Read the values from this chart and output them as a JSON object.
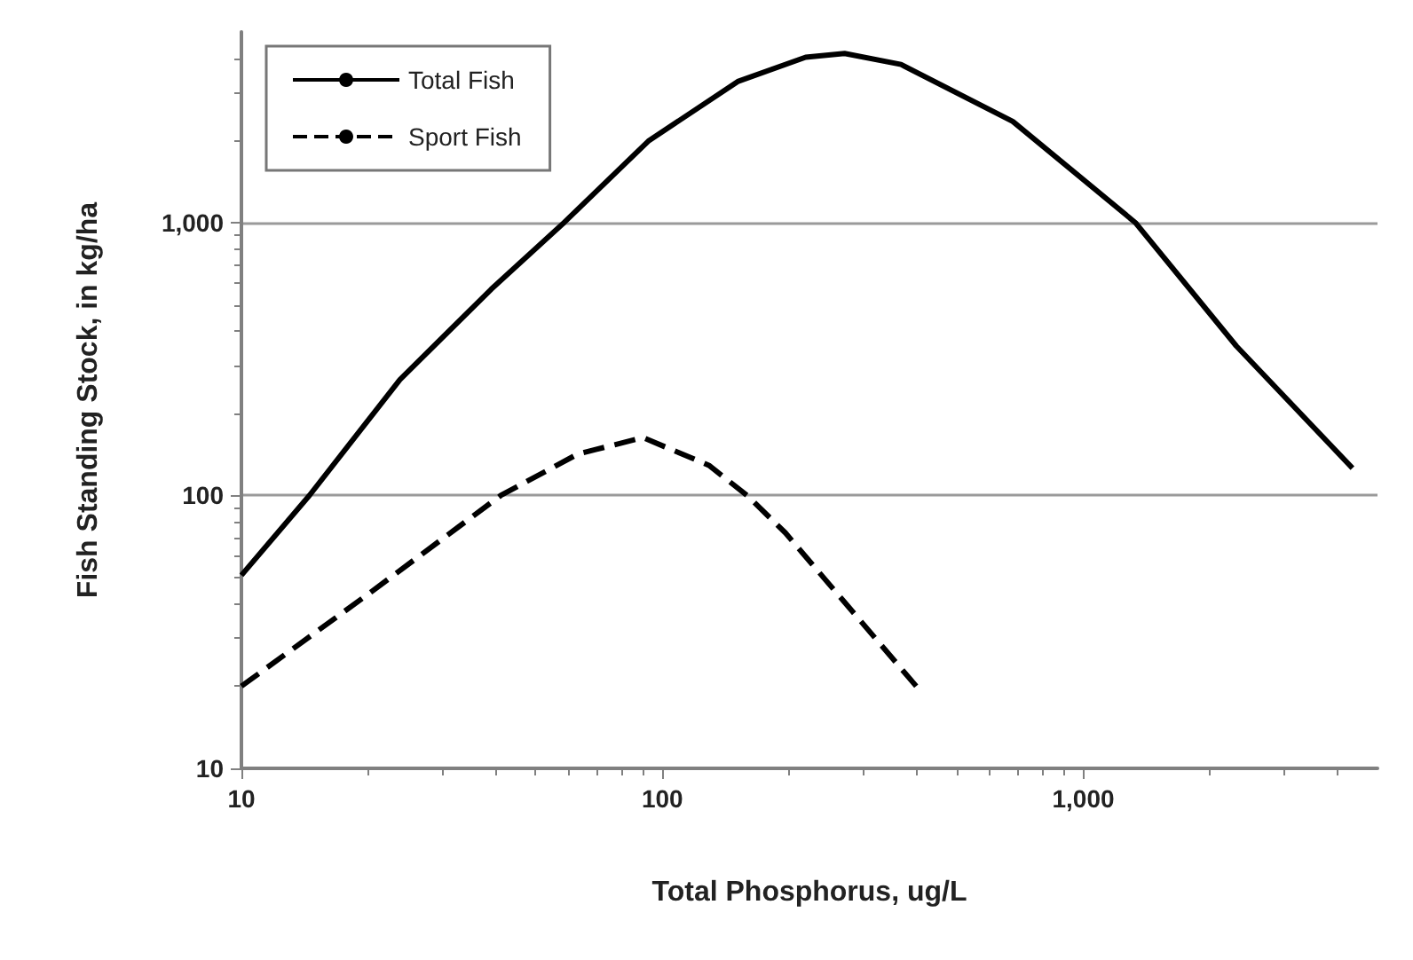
{
  "chart_data": {
    "type": "line",
    "xlabel": "Total Phosphorus, ug/L",
    "ylabel": "Fish Standing Stock, in kg/ha",
    "log": "xy",
    "grid": "y",
    "legend": "top left",
    "xlim": [
      10,
      5000
    ],
    "xticks": [
      10,
      100,
      {
        "value": 1000,
        "label": "1,000"
      }
    ],
    "ylim": [
      10,
      5000
    ],
    "yticks": [
      10,
      100,
      {
        "value": 1000,
        "label": "1,000"
      }
    ],
    "series": [
      {
        "name": "Total Fish",
        "color": "#000000",
        "line_style": "solid",
        "x": [
          10,
          14.5,
          23.8,
          39.2,
          58.4,
          92.6,
          151,
          219,
          271,
          369,
          680,
          1330,
          2310,
          4360
        ],
        "values": [
          51,
          100,
          266,
          570,
          1000,
          1990,
          3290,
          4040,
          4170,
          3800,
          2350,
          1000,
          353,
          126
        ]
      },
      {
        "name": "Sport Fish",
        "color": "#000000",
        "line_style": "dashed",
        "x": [
          10,
          19.8,
          41.3,
          63,
          90,
          129,
          159,
          196,
          401
        ],
        "values": [
          20,
          43,
          100,
          142,
          163,
          129,
          100,
          73,
          20
        ]
      }
    ]
  }
}
